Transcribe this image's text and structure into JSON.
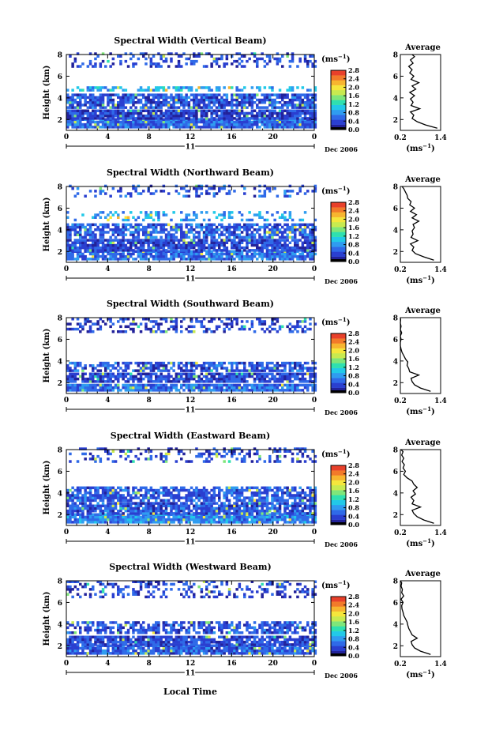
{
  "figure": {
    "xlabel": "Local Time",
    "colorbar_unit_base": "(ms",
    "colorbar_unit_exp": "−1",
    "avg_xlabel_base": "(ms",
    "avg_xlabel_exp": "−1",
    "colormap": [
      "#22229a",
      "#2a3fd0",
      "#2f6ae8",
      "#2f9cf0",
      "#22c9e8",
      "#2fe0b0",
      "#7fe67a",
      "#c8ea50",
      "#f5e63c",
      "#f7b52f",
      "#f27a2a",
      "#e8402a"
    ]
  },
  "chart_data": [
    {
      "type": "heatmap",
      "title": "Spectral Width (Vertical Beam)",
      "ylabel": "Height (km)",
      "x_ticks": [
        "0",
        "4",
        "8",
        "12",
        "16",
        "20",
        "0"
      ],
      "y_ticks": [
        "2",
        "4",
        "6",
        "8"
      ],
      "xlim": [
        0,
        24
      ],
      "ylim": [
        1,
        8
      ],
      "date_day": "11",
      "date_label": "Dec 2006",
      "colorbar": {
        "ticks": [
          "2.8",
          "2.4",
          "2.0",
          "1.6",
          "1.2",
          "0.8",
          "0.4",
          "0.0"
        ],
        "range": [
          0,
          2.8
        ]
      },
      "layers": [
        {
          "y_range": [
            1.2,
            2.0
          ],
          "value": 0.55,
          "density": 0.95
        },
        {
          "y_range": [
            2.0,
            2.8
          ],
          "value": 0.35,
          "density": 0.9
        },
        {
          "y_range": [
            3.0,
            4.2
          ],
          "value": 0.45,
          "density": 0.85
        },
        {
          "y_range": [
            4.6,
            5.0
          ],
          "value": 0.9,
          "density": 0.5
        },
        {
          "y_range": [
            6.8,
            8.0
          ],
          "value": 0.4,
          "density": 0.3
        }
      ],
      "average": {
        "title": "Average",
        "x_ticks": [
          "0.2",
          "1.4"
        ],
        "xlim": [
          0.2,
          1.4
        ],
        "y_ticks": [
          "2",
          "4",
          "6",
          "8"
        ],
        "ylim": [
          1,
          8
        ],
        "profile": [
          [
            1.2,
            1.3
          ],
          [
            1.5,
            0.95
          ],
          [
            1.8,
            0.7
          ],
          [
            2.1,
            0.55
          ],
          [
            2.4,
            0.6
          ],
          [
            2.7,
            0.5
          ],
          [
            3.0,
            0.78
          ],
          [
            3.3,
            0.52
          ],
          [
            3.6,
            0.58
          ],
          [
            3.9,
            0.5
          ],
          [
            4.2,
            0.62
          ],
          [
            4.5,
            0.48
          ],
          [
            4.8,
            0.66
          ],
          [
            5.1,
            0.55
          ],
          [
            5.4,
            0.75
          ],
          [
            5.7,
            0.52
          ],
          [
            6.0,
            0.6
          ],
          [
            6.3,
            0.48
          ],
          [
            6.6,
            0.55
          ],
          [
            6.9,
            0.45
          ],
          [
            7.2,
            0.58
          ],
          [
            7.5,
            0.5
          ],
          [
            7.8,
            0.62
          ],
          [
            8.0,
            0.55
          ]
        ]
      }
    },
    {
      "type": "heatmap",
      "title": "Spectral Width (Northward Beam)",
      "ylabel": "Height (km)",
      "x_ticks": [
        "0",
        "4",
        "8",
        "12",
        "16",
        "20",
        "0"
      ],
      "y_ticks": [
        "2",
        "4",
        "6",
        "8"
      ],
      "xlim": [
        0,
        24
      ],
      "ylim": [
        1,
        8
      ],
      "date_day": "11",
      "date_label": "Dec 2006",
      "colorbar": {
        "ticks": [
          "2.8",
          "2.4",
          "2.0",
          "1.6",
          "1.2",
          "0.8",
          "0.4",
          "0.0"
        ],
        "range": [
          0,
          2.8
        ]
      },
      "layers": [
        {
          "y_range": [
            1.2,
            2.0
          ],
          "value": 0.6,
          "density": 0.9
        },
        {
          "y_range": [
            2.0,
            3.0
          ],
          "value": 0.4,
          "density": 0.85
        },
        {
          "y_range": [
            3.2,
            4.4
          ],
          "value": 0.5,
          "density": 0.75
        },
        {
          "y_range": [
            4.8,
            5.6
          ],
          "value": 0.8,
          "density": 0.3
        },
        {
          "y_range": [
            7.0,
            8.0
          ],
          "value": 0.45,
          "density": 0.25
        }
      ],
      "average": {
        "title": "Average",
        "x_ticks": [
          "0.2",
          "1.4"
        ],
        "xlim": [
          0.2,
          1.4
        ],
        "y_ticks": [
          "2",
          "4",
          "6",
          "8"
        ],
        "ylim": [
          1,
          8
        ],
        "profile": [
          [
            1.2,
            1.2
          ],
          [
            1.5,
            0.9
          ],
          [
            1.8,
            0.65
          ],
          [
            2.1,
            0.55
          ],
          [
            2.4,
            0.6
          ],
          [
            2.7,
            0.5
          ],
          [
            3.0,
            0.72
          ],
          [
            3.3,
            0.52
          ],
          [
            3.6,
            0.58
          ],
          [
            3.9,
            0.55
          ],
          [
            4.2,
            0.62
          ],
          [
            4.5,
            0.58
          ],
          [
            4.8,
            0.75
          ],
          [
            5.1,
            0.55
          ],
          [
            5.4,
            0.68
          ],
          [
            5.7,
            0.5
          ],
          [
            6.0,
            0.62
          ],
          [
            6.3,
            0.48
          ],
          [
            6.6,
            0.52
          ],
          [
            6.9,
            0.42
          ],
          [
            7.2,
            0.4
          ],
          [
            7.5,
            0.35
          ],
          [
            7.8,
            0.3
          ],
          [
            8.0,
            0.25
          ]
        ]
      }
    },
    {
      "type": "heatmap",
      "title": "Spectral Width (Southward Beam)",
      "ylabel": "Height (km)",
      "x_ticks": [
        "0",
        "4",
        "8",
        "12",
        "16",
        "20",
        "0"
      ],
      "y_ticks": [
        "2",
        "4",
        "6",
        "8"
      ],
      "xlim": [
        0,
        24
      ],
      "ylim": [
        1,
        8
      ],
      "date_day": "11",
      "date_label": "Dec 2006",
      "colorbar": {
        "ticks": [
          "2.8",
          "2.4",
          "2.0",
          "1.6",
          "1.2",
          "0.8",
          "0.4",
          "0.0"
        ],
        "range": [
          0,
          2.8
        ]
      },
      "layers": [
        {
          "y_range": [
            1.2,
            1.9
          ],
          "value": 0.6,
          "density": 0.9
        },
        {
          "y_range": [
            2.0,
            2.8
          ],
          "value": 0.4,
          "density": 0.8
        },
        {
          "y_range": [
            3.0,
            3.8
          ],
          "value": 0.45,
          "density": 0.7
        },
        {
          "y_range": [
            6.6,
            8.0
          ],
          "value": 0.35,
          "density": 0.35
        }
      ],
      "average": {
        "title": "Average",
        "x_ticks": [
          "0.2",
          "1.4"
        ],
        "xlim": [
          0.2,
          1.4
        ],
        "y_ticks": [
          "2",
          "4",
          "6",
          "8"
        ],
        "ylim": [
          1,
          8
        ],
        "profile": [
          [
            1.2,
            1.1
          ],
          [
            1.5,
            0.8
          ],
          [
            1.8,
            0.62
          ],
          [
            2.1,
            0.55
          ],
          [
            2.4,
            0.52
          ],
          [
            2.7,
            0.75
          ],
          [
            3.0,
            0.48
          ],
          [
            3.3,
            0.45
          ],
          [
            3.6,
            0.4
          ],
          [
            3.9,
            0.42
          ],
          [
            4.2,
            0.35
          ],
          [
            4.5,
            0.3
          ],
          [
            4.8,
            0.25
          ],
          [
            5.1,
            0.22
          ],
          [
            5.4,
            0.2
          ],
          [
            5.7,
            0.2
          ],
          [
            6.0,
            0.22
          ],
          [
            6.3,
            0.2
          ],
          [
            6.6,
            0.24
          ],
          [
            6.9,
            0.2
          ],
          [
            7.2,
            0.22
          ],
          [
            7.5,
            0.2
          ],
          [
            7.8,
            0.21
          ],
          [
            8.0,
            0.2
          ]
        ]
      }
    },
    {
      "type": "heatmap",
      "title": "Spectral Width (Eastward Beam)",
      "ylabel": "Height (km)",
      "x_ticks": [
        "0",
        "4",
        "8",
        "12",
        "16",
        "20",
        "0"
      ],
      "y_ticks": [
        "2",
        "4",
        "6",
        "8"
      ],
      "xlim": [
        0,
        24
      ],
      "ylim": [
        1,
        8
      ],
      "date_day": "11",
      "date_label": "Dec 2006",
      "colorbar": {
        "ticks": [
          "2.8",
          "2.4",
          "2.0",
          "1.6",
          "1.2",
          "0.8",
          "0.4",
          "0.0"
        ],
        "range": [
          0,
          2.8
        ]
      },
      "layers": [
        {
          "y_range": [
            1.2,
            2.0
          ],
          "value": 0.7,
          "density": 0.9
        },
        {
          "y_range": [
            2.0,
            3.0
          ],
          "value": 0.45,
          "density": 0.85
        },
        {
          "y_range": [
            3.2,
            4.4
          ],
          "value": 0.5,
          "density": 0.75
        },
        {
          "y_range": [
            6.8,
            8.0
          ],
          "value": 0.4,
          "density": 0.3
        }
      ],
      "average": {
        "title": "Average",
        "x_ticks": [
          "0.2",
          "1.4"
        ],
        "xlim": [
          0.2,
          1.4
        ],
        "y_ticks": [
          "2",
          "4",
          "6",
          "8"
        ],
        "ylim": [
          1,
          8
        ],
        "profile": [
          [
            1.2,
            1.2
          ],
          [
            1.5,
            0.9
          ],
          [
            1.8,
            0.7
          ],
          [
            2.1,
            0.6
          ],
          [
            2.4,
            0.55
          ],
          [
            2.7,
            0.8
          ],
          [
            3.0,
            0.55
          ],
          [
            3.3,
            0.6
          ],
          [
            3.6,
            0.52
          ],
          [
            3.9,
            0.65
          ],
          [
            4.2,
            0.58
          ],
          [
            4.5,
            0.7
          ],
          [
            4.8,
            0.6
          ],
          [
            5.1,
            0.55
          ],
          [
            5.4,
            0.4
          ],
          [
            5.7,
            0.3
          ],
          [
            6.0,
            0.35
          ],
          [
            6.3,
            0.28
          ],
          [
            6.6,
            0.32
          ],
          [
            6.9,
            0.25
          ],
          [
            7.2,
            0.3
          ],
          [
            7.5,
            0.24
          ],
          [
            7.8,
            0.28
          ],
          [
            8.0,
            0.22
          ]
        ]
      }
    },
    {
      "type": "heatmap",
      "title": "Spectral Width (Westward Beam)",
      "ylabel": "Height (km)",
      "x_ticks": [
        "0",
        "4",
        "8",
        "12",
        "16",
        "20",
        "0"
      ],
      "y_ticks": [
        "2",
        "4",
        "6",
        "8"
      ],
      "xlim": [
        0,
        24
      ],
      "ylim": [
        1,
        8
      ],
      "date_day": "11",
      "date_label": "Dec 2006",
      "colorbar": {
        "ticks": [
          "2.8",
          "2.4",
          "2.0",
          "1.6",
          "1.2",
          "0.8",
          "0.4",
          "0.0"
        ],
        "range": [
          0,
          2.8
        ]
      },
      "layers": [
        {
          "y_range": [
            1.2,
            2.0
          ],
          "value": 0.5,
          "density": 0.9
        },
        {
          "y_range": [
            2.0,
            2.9
          ],
          "value": 0.4,
          "density": 0.85
        },
        {
          "y_range": [
            3.1,
            4.2
          ],
          "value": 0.45,
          "density": 0.6
        },
        {
          "y_range": [
            6.4,
            8.0
          ],
          "value": 0.35,
          "density": 0.35
        }
      ],
      "average": {
        "title": "Average",
        "x_ticks": [
          "0.2",
          "1.4"
        ],
        "xlim": [
          0.2,
          1.4
        ],
        "y_ticks": [
          "2",
          "4",
          "6",
          "8"
        ],
        "ylim": [
          1,
          8
        ],
        "profile": [
          [
            1.2,
            1.1
          ],
          [
            1.5,
            0.8
          ],
          [
            1.8,
            0.62
          ],
          [
            2.1,
            0.55
          ],
          [
            2.4,
            0.52
          ],
          [
            2.7,
            0.7
          ],
          [
            3.0,
            0.55
          ],
          [
            3.3,
            0.5
          ],
          [
            3.6,
            0.45
          ],
          [
            3.9,
            0.42
          ],
          [
            4.2,
            0.4
          ],
          [
            4.5,
            0.35
          ],
          [
            4.8,
            0.3
          ],
          [
            5.1,
            0.28
          ],
          [
            5.4,
            0.25
          ],
          [
            5.7,
            0.24
          ],
          [
            6.0,
            0.28
          ],
          [
            6.3,
            0.22
          ],
          [
            6.6,
            0.3
          ],
          [
            6.9,
            0.24
          ],
          [
            7.2,
            0.26
          ],
          [
            7.5,
            0.22
          ],
          [
            7.8,
            0.24
          ],
          [
            8.0,
            0.2
          ]
        ]
      }
    }
  ]
}
